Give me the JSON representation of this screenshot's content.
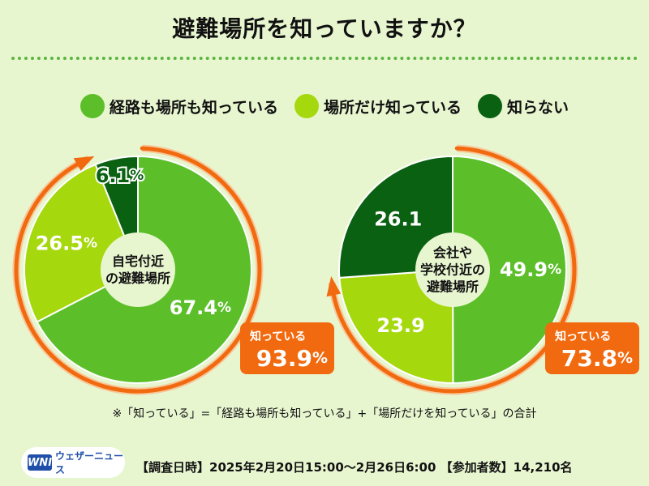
{
  "title": "避難場所を知っていますか？",
  "legend": [
    {
      "label": "経路も場所も知っている",
      "color": "#5cbf2a"
    },
    {
      "label": "場所だけ知っている",
      "color": "#a6d80e"
    },
    {
      "label": "知らない",
      "color": "#0b6112"
    }
  ],
  "chart_data": [
    {
      "type": "pie",
      "center_label": [
        "自宅付近",
        "の避難場所"
      ],
      "categories": [
        "経路も場所も知っている",
        "場所だけ知っている",
        "知らない"
      ],
      "values": [
        67.4,
        26.5,
        6.1
      ],
      "value_labels": [
        {
          "num": "67.4",
          "unit": "%"
        },
        {
          "num": "26.5",
          "unit": "%"
        },
        {
          "num": "6.1",
          "unit": "%"
        }
      ],
      "callout_label": "知っている",
      "callout_value": {
        "num": "93.9",
        "unit": "%"
      }
    },
    {
      "type": "pie",
      "center_label": [
        "会社や",
        "学校付近の",
        "避難場所"
      ],
      "categories": [
        "経路も場所も知っている",
        "場所だけ知っている",
        "知らない"
      ],
      "values": [
        49.9,
        23.9,
        26.1
      ],
      "value_labels": [
        {
          "num": "49.9",
          "unit": "%"
        },
        {
          "num": "23.9",
          "unit": ""
        },
        {
          "num": "26.1",
          "unit": ""
        }
      ],
      "callout_label": "知っている",
      "callout_value": {
        "num": "73.8",
        "unit": "%"
      }
    }
  ],
  "colors": {
    "arrow": "#f26a0f",
    "arrow_track": "#f7c89a",
    "callout": "#f26a0f",
    "dots": "#5bb540",
    "background": "#e8f6d0"
  },
  "note": "※「知っている」=「経路も場所も知っている」+「場所だけを知っている」の合計",
  "logo": {
    "mark": "WNI",
    "text": "ウェザーニュース"
  },
  "survey": "【調査日時】2025年2月20日15:00〜2月26日6:00 【参加者数】14,210名"
}
